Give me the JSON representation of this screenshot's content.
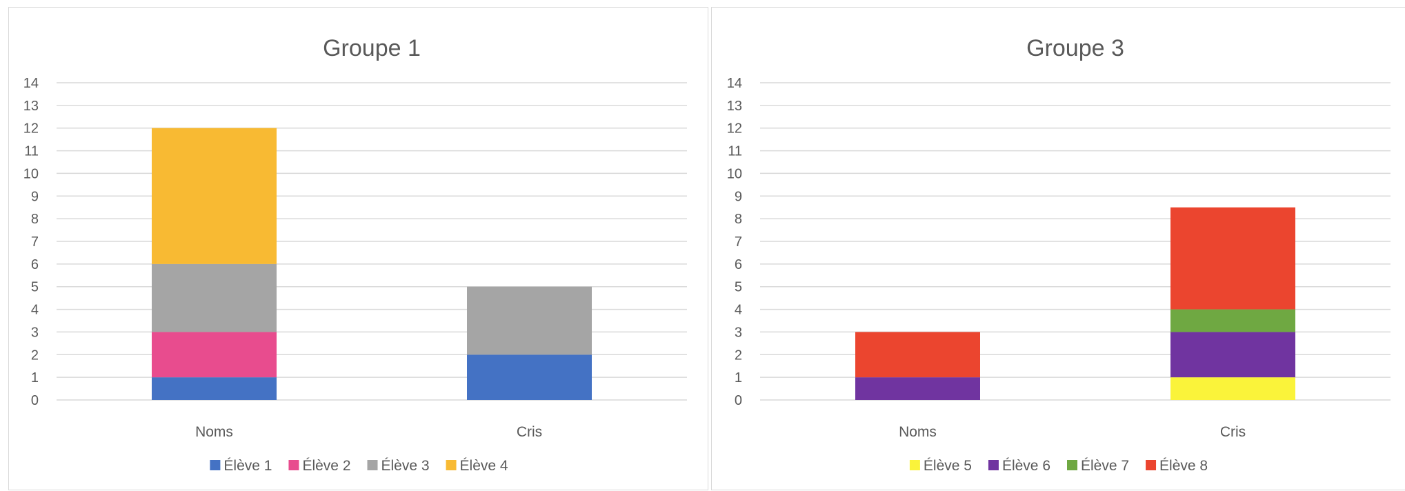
{
  "chart_data": [
    {
      "type": "bar",
      "stacked": true,
      "title": "Groupe 1",
      "categories": [
        "Noms",
        "Cris"
      ],
      "ylim": [
        0,
        14
      ],
      "yticks": [
        0,
        1,
        2,
        3,
        4,
        5,
        6,
        7,
        8,
        9,
        10,
        11,
        12,
        13,
        14
      ],
      "grid": true,
      "legend": "bottom",
      "series": [
        {
          "name": "Élève 1",
          "color": "#4472C4",
          "values": [
            1,
            2
          ]
        },
        {
          "name": "Élève 2",
          "color": "#E84C8E",
          "values": [
            2,
            0
          ]
        },
        {
          "name": "Élève 3",
          "color": "#A5A5A5",
          "values": [
            3,
            3
          ]
        },
        {
          "name": "Élève 4",
          "color": "#F8BA33",
          "values": [
            6,
            0
          ]
        }
      ]
    },
    {
      "type": "bar",
      "stacked": true,
      "title": "Groupe 3",
      "categories": [
        "Noms",
        "Cris"
      ],
      "ylim": [
        0,
        14
      ],
      "yticks": [
        0,
        1,
        2,
        3,
        4,
        5,
        6,
        7,
        8,
        9,
        10,
        11,
        12,
        13,
        14
      ],
      "grid": true,
      "legend": "bottom",
      "series": [
        {
          "name": "Élève 5",
          "color": "#FAF33A",
          "values": [
            0,
            1
          ]
        },
        {
          "name": "Élève 6",
          "color": "#7034A0",
          "values": [
            1,
            2
          ]
        },
        {
          "name": "Élève 7",
          "color": "#6FA842",
          "values": [
            0,
            1
          ]
        },
        {
          "name": "Élève 8",
          "color": "#EB452F",
          "values": [
            2,
            4.5
          ]
        }
      ]
    }
  ]
}
